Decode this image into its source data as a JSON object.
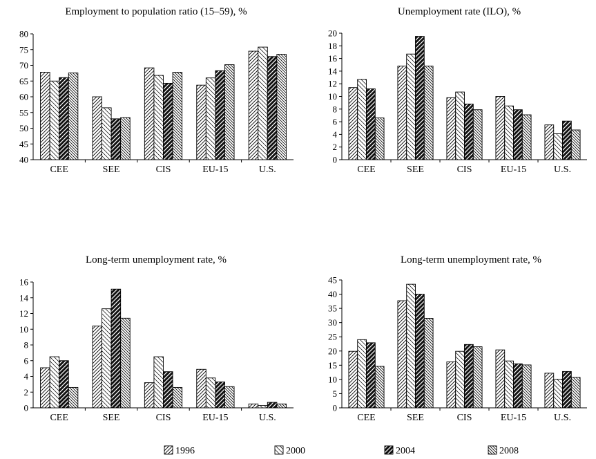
{
  "chart_data": [
    {
      "type": "bar",
      "title": "Employment to population ratio (15–59), %",
      "categories": [
        "CEE",
        "SEE",
        "CIS",
        "EU-15",
        "U.S."
      ],
      "ylim": [
        40,
        80
      ],
      "yticks": [
        40,
        45,
        50,
        55,
        60,
        65,
        70,
        75,
        80
      ],
      "ytick_labels": [
        "40",
        "45",
        "50",
        "55",
        "60",
        "65",
        "70",
        "75",
        "80"
      ],
      "series": [
        {
          "name": "1996",
          "values": [
            67.8,
            60.0,
            69.2,
            63.7,
            74.5
          ]
        },
        {
          "name": "2000",
          "values": [
            65.0,
            56.5,
            66.8,
            66.0,
            75.8
          ]
        },
        {
          "name": "2004",
          "values": [
            66.1,
            53.0,
            64.3,
            68.3,
            72.8
          ]
        },
        {
          "name": "2008",
          "values": [
            67.6,
            53.4,
            67.8,
            70.2,
            73.5
          ]
        }
      ],
      "grid": false
    },
    {
      "type": "bar",
      "title": "Unemployment rate (ILO), %",
      "categories": [
        "CEE",
        "SEE",
        "CIS",
        "EU-15",
        "U.S."
      ],
      "ylim": [
        0,
        20
      ],
      "yticks": [
        0,
        2,
        4,
        6,
        8,
        10,
        12,
        14,
        16,
        18,
        20
      ],
      "ytick_labels": [
        "0",
        "2",
        "4",
        "6",
        "8",
        "10",
        "12",
        "14",
        "16",
        "18",
        "20"
      ],
      "series": [
        {
          "name": "1996",
          "values": [
            11.4,
            14.8,
            9.8,
            10.0,
            5.5
          ]
        },
        {
          "name": "2000",
          "values": [
            12.7,
            16.7,
            10.7,
            8.5,
            4.1
          ]
        },
        {
          "name": "2004",
          "values": [
            11.2,
            19.5,
            8.8,
            7.9,
            6.1
          ]
        },
        {
          "name": "2008",
          "values": [
            6.6,
            14.8,
            7.9,
            7.1,
            4.7
          ]
        }
      ],
      "grid": false
    },
    {
      "type": "bar",
      "title": "Long-term unemployment rate, %",
      "categories": [
        "CEE",
        "SEE",
        "CIS",
        "EU-15",
        "U.S."
      ],
      "ylim": [
        0,
        16
      ],
      "yticks": [
        0,
        2,
        4,
        6,
        8,
        10,
        12,
        14,
        16
      ],
      "ytick_labels": [
        "0",
        "2",
        "4",
        "6",
        "8",
        "10",
        "12",
        "14",
        "16"
      ],
      "series": [
        {
          "name": "1996",
          "values": [
            5.1,
            10.4,
            3.2,
            4.9,
            0.5
          ]
        },
        {
          "name": "2000",
          "values": [
            6.5,
            12.6,
            6.5,
            3.8,
            0.3
          ]
        },
        {
          "name": "2004",
          "values": [
            6.0,
            15.1,
            4.6,
            3.3,
            0.7
          ]
        },
        {
          "name": "2008",
          "values": [
            2.6,
            11.4,
            2.6,
            2.7,
            0.5
          ]
        }
      ],
      "grid": false
    },
    {
      "type": "bar",
      "title": "Long-term unemployment rate, %",
      "categories": [
        "CEE",
        "SEE",
        "CIS",
        "EU-15",
        "U.S."
      ],
      "ylim": [
        0,
        45
      ],
      "yticks": [
        0,
        5,
        10,
        15,
        20,
        25,
        30,
        35,
        40,
        45
      ],
      "ytick_labels": [
        "0",
        "5",
        "10",
        "15",
        "20",
        "25",
        "30",
        "35",
        "40",
        "45"
      ],
      "series": [
        {
          "name": "1996",
          "values": [
            19.9,
            37.7,
            16.2,
            20.4,
            12.2
          ]
        },
        {
          "name": "2000",
          "values": [
            24.0,
            43.5,
            19.9,
            16.5,
            10.1
          ]
        },
        {
          "name": "2004",
          "values": [
            22.9,
            40.0,
            22.3,
            15.5,
            12.8
          ]
        },
        {
          "name": "2008",
          "values": [
            14.6,
            31.5,
            21.5,
            15.1,
            10.7
          ]
        }
      ],
      "grid": false
    }
  ],
  "legend": {
    "placement": "bottom",
    "items": [
      {
        "label": "1996",
        "pattern": "hatch-light"
      },
      {
        "label": "2000",
        "pattern": "hatch-back-light"
      },
      {
        "label": "2004",
        "pattern": "hatch-dark"
      },
      {
        "label": "2008",
        "pattern": "hatch-back-dense"
      }
    ]
  }
}
